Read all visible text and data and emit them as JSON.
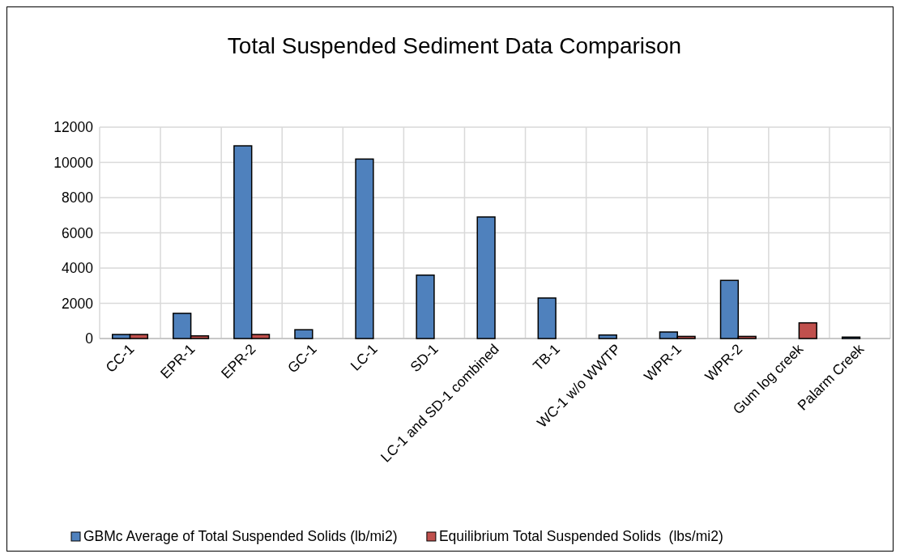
{
  "chart_data": {
    "type": "bar",
    "title": "Total Suspended Sediment Data Comparison",
    "categories": [
      "CC-1",
      "EPR-1",
      "EPR-2",
      "GC-1",
      "LC-1",
      "SD-1",
      "LC-1 and SD-1 combined",
      "TB-1",
      "WC-1 w/o WWTP",
      "WPR-1",
      "WPR-2",
      "Gum log creek",
      "Palarm Creek"
    ],
    "series": [
      {
        "name": "GBMc Average of Total Suspended Solids (lb/mi2)",
        "color": "#4f81bd",
        "values": [
          230,
          1430,
          10940,
          500,
          10190,
          3600,
          6900,
          2300,
          200,
          370,
          3300,
          null,
          80
        ]
      },
      {
        "name": "Equilibrium Total Suspended Solids  (lbs/mi2)",
        "color": "#c0504d",
        "values": [
          230,
          150,
          230,
          null,
          null,
          null,
          null,
          null,
          null,
          120,
          120,
          890,
          null
        ]
      }
    ],
    "ylim": [
      0,
      12000
    ],
    "yticks": [
      0,
      2000,
      4000,
      6000,
      8000,
      10000,
      12000
    ],
    "grid": true,
    "legend": "bottom"
  }
}
